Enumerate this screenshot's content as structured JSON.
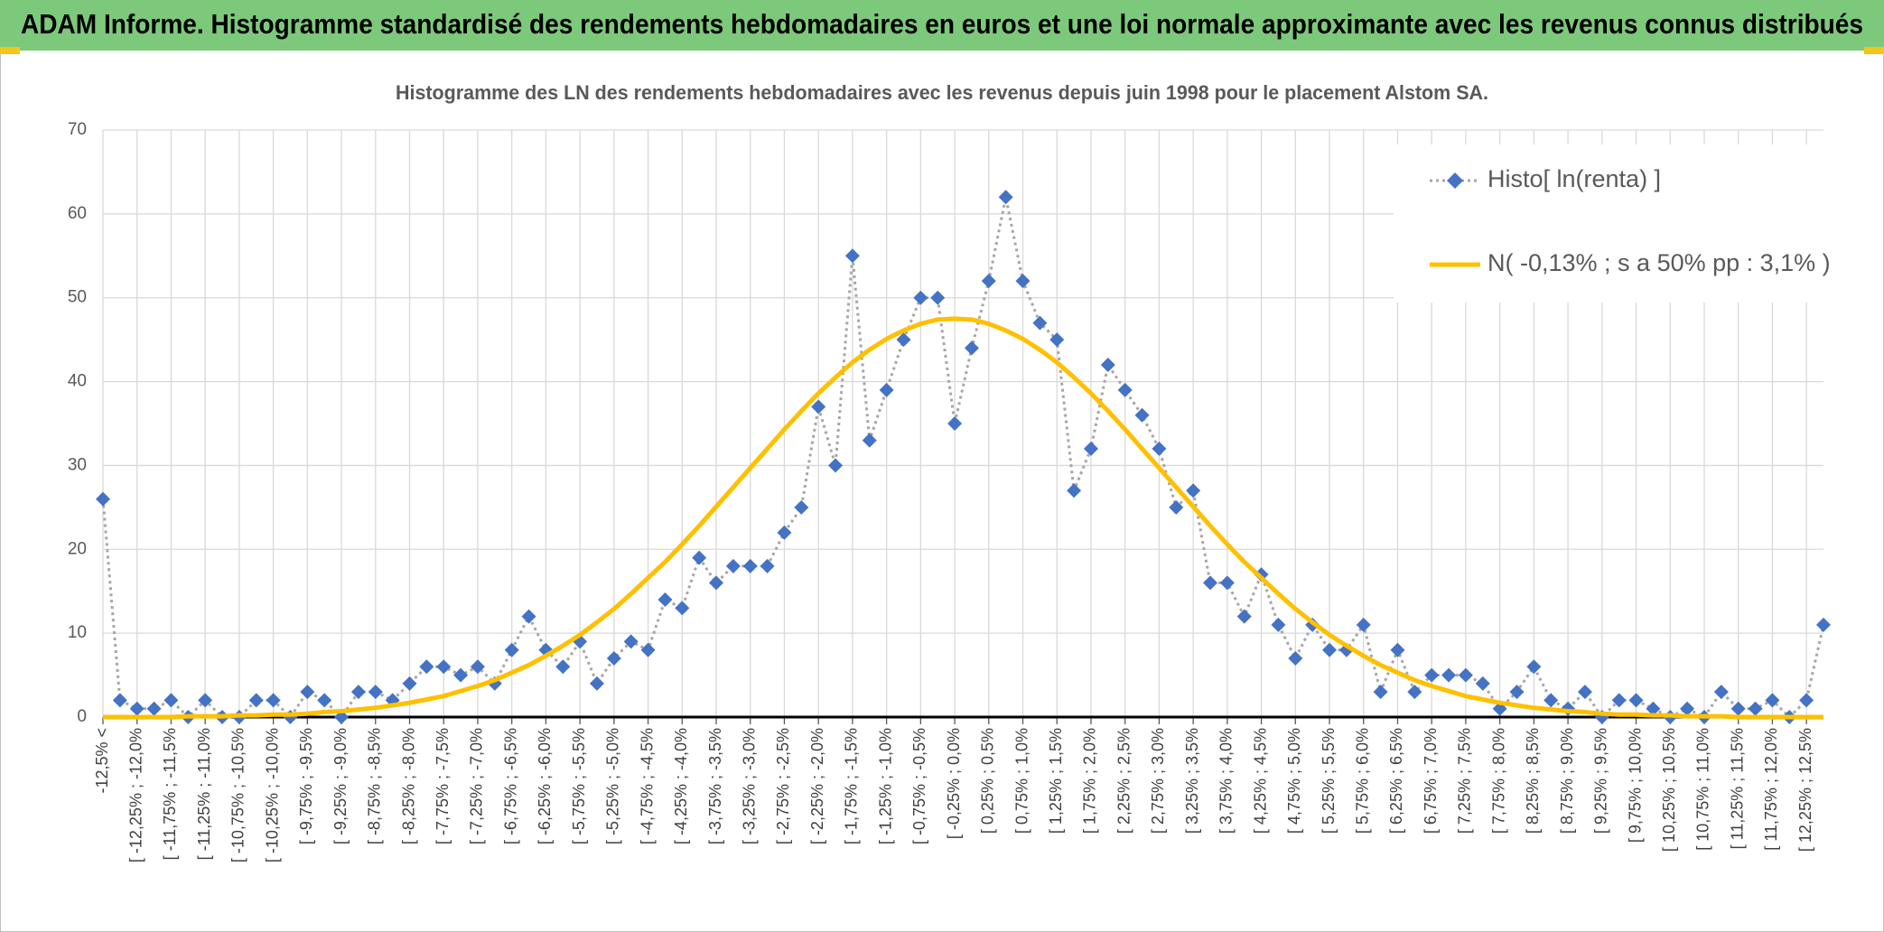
{
  "header": {
    "title": "ADAM Informe. Histogramme standardisé des rendements hebdomadaires en euros et une loi normale approximante avec les revenus connus distribués"
  },
  "chart_data": {
    "type": "line",
    "title": "Histogramme des LN des rendements hebdomadaires avec les revenus depuis juin 1998 pour le placement Alstom SA.",
    "categories": [
      "-12,5% <",
      null,
      "[ -12,25% ; -12,0%",
      null,
      "[ -11,75% ; -11,5%",
      null,
      "[ -11,25% ; -11,0%",
      null,
      "[ -10,75% ; -10,5%",
      null,
      "[ -10,25% ; -10,0%",
      null,
      "[ -9,75% ; -9,5%",
      null,
      "[ -9,25% ; -9,0%",
      null,
      "[ -8,75% ; -8,5%",
      null,
      "[ -8,25% ; -8,0%",
      null,
      "[ -7,75% ; -7,5%",
      null,
      "[ -7,25% ; -7,0%",
      null,
      "[ -6,75% ; -6,5%",
      null,
      "[ -6,25% ; -6,0%",
      null,
      "[ -5,75% ; -5,5%",
      null,
      "[ -5,25% ; -5,0%",
      null,
      "[ -4,75% ; -4,5%",
      null,
      "[ -4,25% ; -4,0%",
      null,
      "[ -3,75% ; -3,5%",
      null,
      "[ -3,25% ; -3,0%",
      null,
      "[ -2,75% ; -2,5%",
      null,
      "[ -2,25% ; -2,0%",
      null,
      "[ -1,75% ; -1,5%",
      null,
      "[ -1,25% ; -1,0%",
      null,
      "[ -0,75% ; -0,5%",
      null,
      "[ -0,25% ; 0,0%",
      null,
      "[ 0,25% ; 0,5%",
      null,
      "[ 0,75% ; 1,0%",
      null,
      "[ 1,25% ; 1,5%",
      null,
      "[ 1,75% ; 2,0%",
      null,
      "[ 2,25% ; 2,5%",
      null,
      "[ 2,75% ; 3,0%",
      null,
      "[ 3,25% ; 3,5%",
      null,
      "[ 3,75% ; 4,0%",
      null,
      "[ 4,25% ; 4,5%",
      null,
      "[ 4,75% ; 5,0%",
      null,
      "[ 5,25% ; 5,5%",
      null,
      "[ 5,75% ; 6,0%",
      null,
      "[ 6,25% ; 6,5%",
      null,
      "[ 6,75% ; 7,0%",
      null,
      "[ 7,25% ; 7,5%",
      null,
      "[ 7,75% ; 8,0%",
      null,
      "[ 8,25% ; 8,5%",
      null,
      "[ 8,75% ; 9,0%",
      null,
      "[ 9,25% ; 9,5%",
      null,
      "[ 9,75% ; 10,0%",
      null,
      "[ 10,25% ; 10,5%",
      null,
      "[ 10,75% ; 11,0%",
      null,
      "[ 11,25% ; 11,5%",
      null,
      "[ 11,75% ; 12,0%",
      null,
      "[ 12,25% ; 12,5%",
      null
    ],
    "series": [
      {
        "name": "Histo[ ln(renta) ]",
        "color": "#4472c4",
        "line_color": "#a6a6a6",
        "line_style": "dotted",
        "marker": "diamond",
        "values": [
          26,
          2,
          1,
          1,
          2,
          0,
          2,
          0,
          0,
          2,
          2,
          0,
          3,
          2,
          0,
          3,
          3,
          2,
          4,
          6,
          6,
          5,
          6,
          4,
          8,
          12,
          8,
          6,
          9,
          4,
          7,
          9,
          8,
          14,
          13,
          19,
          16,
          18,
          18,
          18,
          22,
          25,
          37,
          30,
          55,
          33,
          39,
          45,
          50,
          50,
          35,
          44,
          52,
          62,
          52,
          47,
          45,
          27,
          32,
          42,
          39,
          36,
          32,
          25,
          27,
          16,
          16,
          12,
          17,
          11,
          7,
          11,
          8,
          8,
          11,
          3,
          8,
          3,
          5,
          5,
          5,
          4,
          1,
          3,
          6,
          2,
          1,
          3,
          0,
          2,
          2,
          1,
          0,
          1,
          0,
          3,
          1,
          1,
          2,
          0,
          2,
          11
        ]
      },
      {
        "name": "N( -0,13% ; s a 50% pp : 3,1% )",
        "color": "#ffc000",
        "line_color": "#ffc000",
        "line_style": "solid",
        "marker": "none",
        "values": [
          0,
          0,
          0,
          0,
          0,
          0.1,
          0.1,
          0.1,
          0.2,
          0.2,
          0.3,
          0.3,
          0.4,
          0.6,
          0.7,
          0.9,
          1.1,
          1.4,
          1.7,
          2.1,
          2.5,
          3.1,
          3.7,
          4.4,
          5.3,
          6.2,
          7.3,
          8.5,
          9.8,
          11.3,
          12.9,
          14.7,
          16.6,
          18.5,
          20.6,
          22.8,
          25.1,
          27.4,
          29.7,
          32.0,
          34.3,
          36.5,
          38.6,
          40.5,
          42.3,
          43.8,
          45.1,
          46.1,
          46.9,
          47.4,
          47.5,
          47.4,
          46.9,
          46.1,
          45.1,
          43.8,
          42.3,
          40.5,
          38.6,
          36.5,
          34.3,
          32.0,
          29.7,
          27.4,
          25.1,
          22.8,
          20.6,
          18.5,
          16.6,
          14.7,
          12.9,
          11.3,
          9.8,
          8.5,
          7.3,
          6.2,
          5.3,
          4.4,
          3.7,
          3.1,
          2.5,
          2.1,
          1.7,
          1.4,
          1.1,
          0.9,
          0.7,
          0.6,
          0.4,
          0.3,
          0.3,
          0.2,
          0.2,
          0.1,
          0.1,
          0.1,
          0,
          0,
          0,
          0,
          0,
          0
        ]
      }
    ],
    "ylim": [
      0,
      70
    ],
    "yticks": [
      0,
      10,
      20,
      30,
      40,
      50,
      60,
      70
    ],
    "grid": true,
    "legend": "top-right"
  }
}
